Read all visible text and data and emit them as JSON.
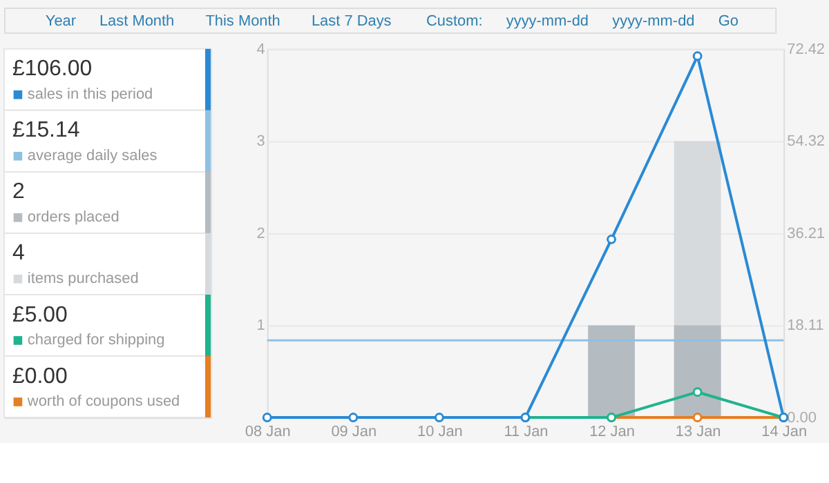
{
  "chart_data": {
    "type": "line",
    "categories": [
      "08 Jan",
      "09 Jan",
      "10 Jan",
      "11 Jan",
      "12 Jan",
      "13 Jan",
      "14 Jan"
    ],
    "series": [
      {
        "name": "sales in this period",
        "axis": "y2",
        "color": "#2a8ad4",
        "values": [
          0,
          0,
          0,
          0,
          35,
          71,
          0
        ]
      },
      {
        "name": "orders placed",
        "type": "bar",
        "color": "#b4bbc1",
        "values": [
          0,
          0,
          0,
          0,
          1,
          1,
          0
        ]
      },
      {
        "name": "items purchased",
        "type": "bar",
        "color": "#d6dadd",
        "values": [
          0,
          0,
          0,
          0,
          null,
          3,
          0
        ]
      },
      {
        "name": "charged for shipping",
        "axis": "y2",
        "color": "#1fb38e",
        "values": [
          null,
          null,
          null,
          0,
          0,
          5,
          0
        ]
      },
      {
        "name": "worth of coupons used",
        "axis": "y2",
        "color": "#e67e22",
        "values": [
          null,
          null,
          null,
          null,
          0,
          0,
          0
        ]
      }
    ],
    "ref_lines": [
      {
        "axis": "y2",
        "value": 15.14,
        "label": "average daily sales",
        "color": "#8fc1e3"
      }
    ],
    "ylim": [
      0,
      4
    ],
    "yticks": [
      1,
      2,
      3,
      4
    ],
    "y2lim": [
      0,
      72.42
    ],
    "y2ticks": [
      {
        "value": 0,
        "label": "0.00"
      },
      18.11,
      36.21,
      54.32,
      72.42
    ],
    "annotations": [
      "£106.00",
      "£15.14",
      "2",
      "4",
      "£5.00",
      "£0.00",
      "Year",
      "Last Month",
      "This Month",
      "Last 7 Days",
      "Custom:",
      "yyyy-mm-dd",
      "yyyy-mm-dd",
      "Go"
    ],
    "grid": "y",
    "legend": "left",
    "marker": "circle",
    "line_style": "solid"
  }
}
